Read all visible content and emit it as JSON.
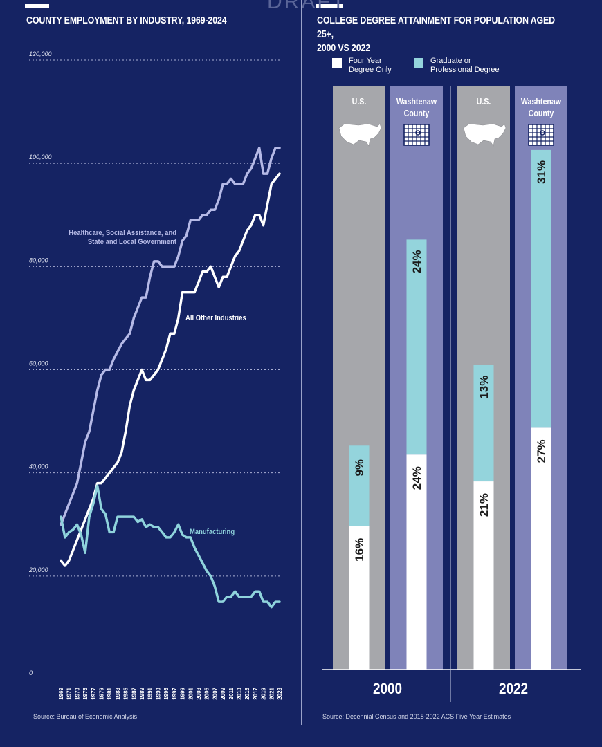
{
  "watermark": "DRAFT",
  "chart_data": [
    {
      "type": "line",
      "title": "COUNTY EMPLOYMENT BY INDUSTRY, 1969-2024",
      "source": "Source: Bureau of Economic Analysis",
      "ylim": [
        0,
        120000
      ],
      "yticks": [
        0,
        20000,
        40000,
        60000,
        80000,
        100000,
        120000
      ],
      "ytick_labels": [
        "0",
        "20,000",
        "40,000",
        "60,000",
        "80,000",
        "100,000",
        "120,000"
      ],
      "xlim": [
        1969,
        2023
      ],
      "xtick_labels": [
        "1969",
        "1971",
        "1973",
        "1975",
        "1977",
        "1979",
        "1981",
        "1983",
        "1985",
        "1987",
        "1989",
        "1991",
        "1993",
        "1995",
        "1997",
        "1999",
        "2001",
        "2003",
        "2005",
        "2007",
        "2009",
        "2011",
        "2013",
        "2015",
        "2017",
        "2019",
        "2021",
        "2023"
      ],
      "grid": true,
      "x": [
        1969,
        1970,
        1971,
        1972,
        1973,
        1974,
        1975,
        1976,
        1977,
        1978,
        1979,
        1980,
        1981,
        1982,
        1983,
        1984,
        1985,
        1986,
        1987,
        1988,
        1989,
        1990,
        1991,
        1992,
        1993,
        1994,
        1995,
        1996,
        1997,
        1998,
        1999,
        2000,
        2001,
        2002,
        2003,
        2004,
        2005,
        2006,
        2007,
        2008,
        2009,
        2010,
        2011,
        2012,
        2013,
        2014,
        2015,
        2016,
        2017,
        2018,
        2019,
        2020,
        2021,
        2022,
        2023
      ],
      "series": [
        {
          "name": "Healthcare, Social Assistance, and State and Local Government",
          "label_lines": [
            "Healthcare, Social Assistance,  and",
            "State and Local Government"
          ],
          "color": "#b5b9e6",
          "values": [
            30000,
            32000,
            34000,
            36000,
            38000,
            42000,
            46000,
            48000,
            52000,
            56000,
            59000,
            60000,
            60000,
            62000,
            63500,
            65000,
            66000,
            67000,
            70000,
            72000,
            74000,
            74000,
            78000,
            81000,
            81000,
            80000,
            80000,
            80000,
            80000,
            82000,
            85000,
            86000,
            89000,
            89000,
            89000,
            90000,
            90000,
            91000,
            91000,
            93000,
            96000,
            96000,
            97000,
            96000,
            96000,
            96000,
            98000,
            99000,
            101000,
            103000,
            98000,
            98000,
            101000,
            103000,
            103000
          ]
        },
        {
          "name": "All Other Industries",
          "label_lines": [
            "All Other Industries"
          ],
          "color": "#ffffff",
          "values": [
            23000,
            22000,
            23000,
            25000,
            27000,
            29000,
            31000,
            33000,
            35000,
            38000,
            38000,
            39000,
            40000,
            41000,
            42000,
            44000,
            48000,
            53000,
            56000,
            58000,
            60000,
            58000,
            58000,
            59000,
            60000,
            62000,
            64000,
            67000,
            67000,
            70000,
            75000,
            75000,
            75000,
            75000,
            77000,
            79000,
            79000,
            80000,
            78000,
            76000,
            78000,
            78000,
            80000,
            82000,
            83000,
            85000,
            87000,
            88000,
            90000,
            90000,
            88000,
            92000,
            96000,
            97000,
            98000
          ]
        },
        {
          "name": "Manufacturing",
          "label_lines": [
            "Manufacturing"
          ],
          "color": "#8fd3dc",
          "values": [
            31500,
            27500,
            28500,
            29000,
            30000,
            28000,
            24500,
            31500,
            34000,
            37500,
            33000,
            32000,
            28500,
            28500,
            31500,
            31500,
            31500,
            31500,
            31500,
            30500,
            31000,
            29500,
            30000,
            29500,
            29500,
            28500,
            27500,
            27500,
            28500,
            30000,
            28000,
            27500,
            27500,
            25500,
            24000,
            22500,
            21000,
            20000,
            18000,
            15000,
            15000,
            16000,
            16000,
            17000,
            16000,
            16000,
            16000,
            16000,
            17000,
            17000,
            15000,
            15000,
            14000,
            15000,
            15000
          ]
        }
      ]
    },
    {
      "type": "bar",
      "title_lines": [
        "COLLEGE DEGREE ATTAINMENT FOR POPULATION AGED 25+,",
        "2000 VS 2022"
      ],
      "source": "Source: Decennial Census and 2018-2022 ACS Five Year Estimates",
      "stacked": true,
      "ylim": [
        0,
        100
      ],
      "legend": [
        {
          "label_lines": [
            "Four Year",
            "Degree Only"
          ],
          "color": "#ffffff"
        },
        {
          "label_lines": [
            "Graduate or",
            "Professional Degree"
          ],
          "color": "#94d4dc"
        }
      ],
      "groups": [
        {
          "year": "2000",
          "columns": [
            {
              "region": "U.S.",
              "region_lines": [
                "U.S."
              ],
              "icon": "us-map-icon",
              "bg_color": "#a6a7ab",
              "four_year": 16,
              "graduate": 9,
              "four_year_label": "16%",
              "graduate_label": "9%"
            },
            {
              "region": "Washtenaw County",
              "region_lines": [
                "Washtenaw",
                "County"
              ],
              "icon": "county-grid-icon",
              "bg_color": "#7f83b9",
              "four_year": 24,
              "graduate": 24,
              "four_year_label": "24%",
              "graduate_label": "24%"
            }
          ]
        },
        {
          "year": "2022",
          "columns": [
            {
              "region": "U.S.",
              "region_lines": [
                "U.S."
              ],
              "icon": "us-map-icon",
              "bg_color": "#a6a7ab",
              "four_year": 21,
              "graduate": 13,
              "four_year_label": "21%",
              "graduate_label": "13%"
            },
            {
              "region": "Washtenaw County",
              "region_lines": [
                "Washtenaw",
                "County"
              ],
              "icon": "county-grid-icon",
              "bg_color": "#7f83b9",
              "four_year": 27,
              "graduate": 31,
              "four_year_label": "27%",
              "graduate_label": "31%"
            }
          ]
        }
      ]
    }
  ]
}
